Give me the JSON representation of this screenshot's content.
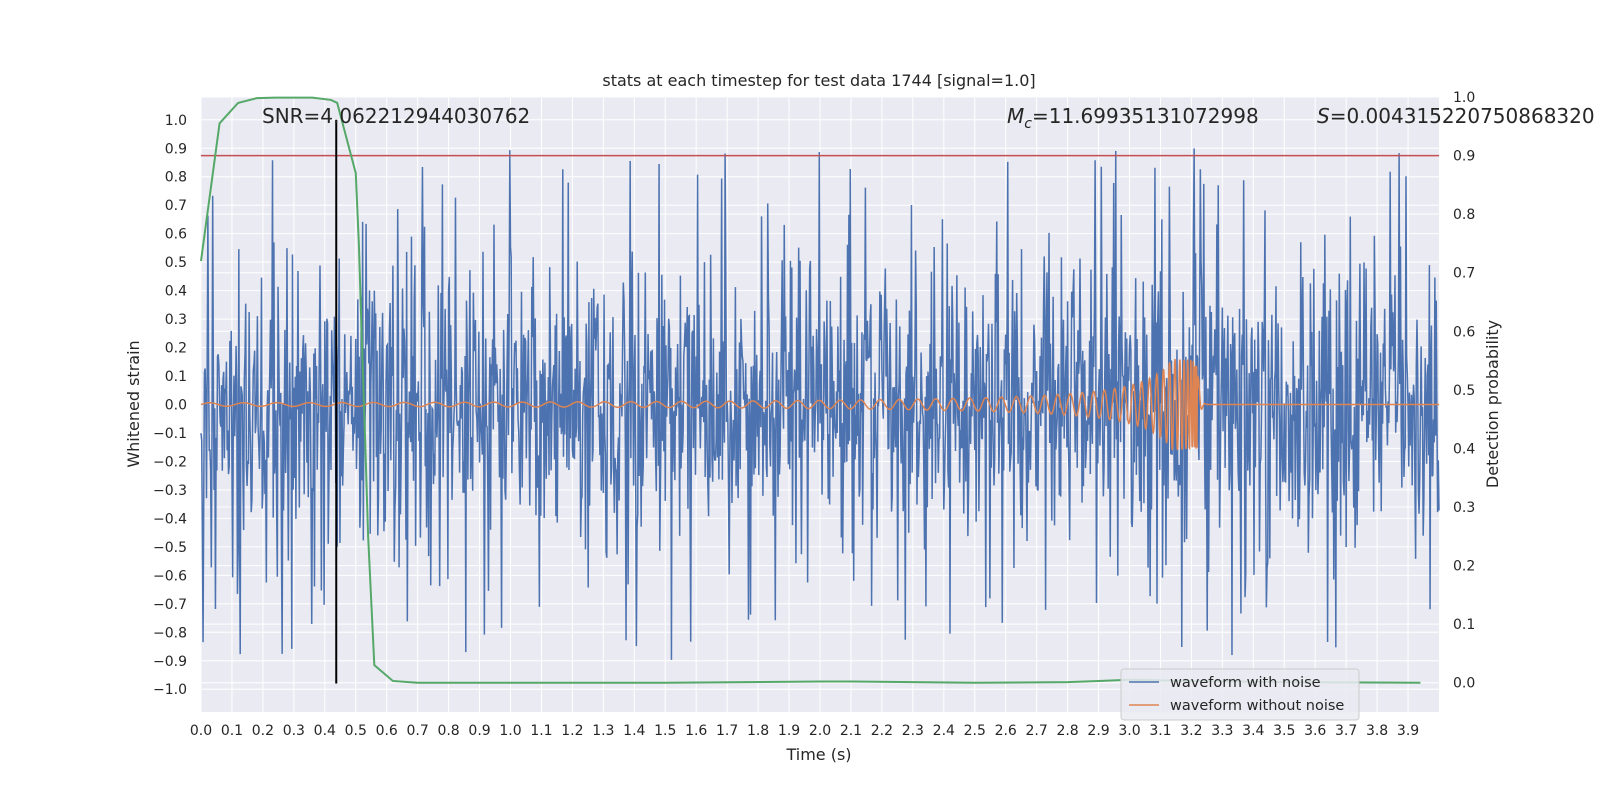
{
  "chart_data": {
    "type": "line",
    "title": "stats at each timestep for test data 1744 [signal=1.0]",
    "xlabel": "Time (s)",
    "ylabel": "Whitened strain",
    "y2label": "Detection probability",
    "xlim": [
      0.0,
      4.0
    ],
    "ylim": [
      -1.08,
      1.08
    ],
    "y2lim": [
      -0.05,
      1.0
    ],
    "x_ticks": [
      0.0,
      0.1,
      0.2,
      0.3,
      0.4,
      0.5,
      0.6,
      0.7,
      0.8,
      0.9,
      1.0,
      1.1,
      1.2,
      1.3,
      1.4,
      1.5,
      1.6,
      1.7,
      1.8,
      1.9,
      2.0,
      2.1,
      2.2,
      2.3,
      2.4,
      2.5,
      2.6,
      2.7,
      2.8,
      2.9,
      3.0,
      3.1,
      3.2,
      3.3,
      3.4,
      3.5,
      3.6,
      3.7,
      3.8,
      3.9
    ],
    "x_tick_labels": [
      "0.0",
      "0.1",
      "0.2",
      "0.3",
      "0.4",
      "0.5",
      "0.6",
      "0.7",
      "0.8",
      "0.9",
      "1.0",
      "1.1",
      "1.2",
      "1.3",
      "1.4",
      "1.5",
      "1.6",
      "1.7",
      "1.8",
      "1.9",
      "2.0",
      "2.1",
      "2.2",
      "2.3",
      "2.4",
      "2.5",
      "2.6",
      "2.7",
      "2.8",
      "2.9",
      "3.0",
      "3.1",
      "3.2",
      "3.3",
      "3.4",
      "3.5",
      "3.6",
      "3.7",
      "3.8",
      "3.9"
    ],
    "y_ticks": [
      1.0,
      0.9,
      0.8,
      0.7,
      0.6,
      0.5,
      0.4,
      0.3,
      0.2,
      0.1,
      0.0,
      -0.1,
      -0.2,
      -0.3,
      -0.4,
      -0.5,
      -0.6,
      -0.7,
      -0.8,
      -0.9,
      -1.0
    ],
    "y_tick_labels": [
      "1.0",
      "0.9",
      "0.8",
      "0.7",
      "0.6",
      "0.5",
      "0.4",
      "0.3",
      "0.2",
      "0.1",
      "0.0",
      "−0.1",
      "−0.2",
      "−0.3",
      "−0.4",
      "−0.5",
      "−0.6",
      "−0.7",
      "−0.8",
      "−0.9",
      "−1.0"
    ],
    "y2_ticks": [
      1.0,
      0.9,
      0.8,
      0.7,
      0.6,
      0.5,
      0.4,
      0.3,
      0.2,
      0.1,
      0.0
    ],
    "y2_tick_labels": [
      "1.0",
      "0.9",
      "0.8",
      "0.7",
      "0.6",
      "0.5",
      "0.4",
      "0.3",
      "0.2",
      "0.1",
      "0.0"
    ],
    "threshold": {
      "value": 0.9,
      "axis": "y2",
      "color": "#c44e52"
    },
    "marker_line": {
      "x": 0.437,
      "y_range": [
        -0.98,
        1.0
      ],
      "color": "#000000"
    },
    "series": [
      {
        "name": "waveform with noise",
        "color": "#4c72b0",
        "axis": "y",
        "kind": "noise",
        "amplitude_typical": 0.4,
        "amplitude_peak": 1.0,
        "x_range": [
          0.0,
          4.0
        ]
      },
      {
        "name": "waveform without noise",
        "color": "#dd8452",
        "axis": "y",
        "kind": "chirp",
        "x_range": [
          0.0,
          4.0
        ],
        "merger_time": 3.22,
        "peak_amplitude": 0.16
      },
      {
        "name": "detection probability",
        "color": "#55a868",
        "axis": "y2",
        "x": [
          0.0,
          0.06,
          0.12,
          0.18,
          0.24,
          0.3,
          0.36,
          0.42,
          0.44,
          0.5,
          0.51,
          0.52,
          0.53,
          0.54,
          0.56,
          0.62,
          0.7,
          0.8,
          1.0,
          1.5,
          2.0,
          2.1,
          2.5,
          2.8,
          2.9,
          3.0,
          3.1,
          3.2,
          3.5,
          3.94
        ],
        "y": [
          0.72,
          0.955,
          0.99,
          0.998,
          0.999,
          0.999,
          0.999,
          0.995,
          0.99,
          0.87,
          0.75,
          0.58,
          0.42,
          0.25,
          0.03,
          0.003,
          0.0,
          0.0,
          0.0,
          0.0,
          0.002,
          0.002,
          0.0,
          0.001,
          0.003,
          0.005,
          0.004,
          0.003,
          0.001,
          0.0
        ]
      }
    ],
    "annotations": [
      {
        "name": "snr",
        "text": "SNR=4.062212944030762"
      },
      {
        "name": "chirp-mass-symbol",
        "text": "M"
      },
      {
        "name": "chirp-mass-subscript",
        "text": "c"
      },
      {
        "name": "chirp-mass-value",
        "text": "=11.69935131072998"
      },
      {
        "name": "s-symbol",
        "text": "S"
      },
      {
        "name": "s-value",
        "text": "=0.004315220750868320"
      }
    ],
    "legend": {
      "placement": "lower right",
      "entries": [
        "waveform with noise",
        "waveform without noise"
      ]
    }
  }
}
